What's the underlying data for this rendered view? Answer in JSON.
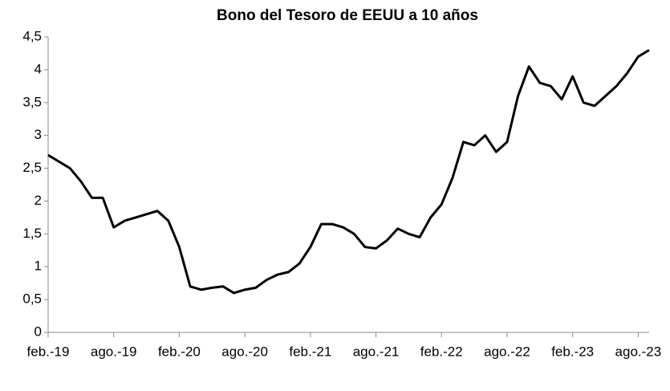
{
  "chart_data": {
    "type": "line",
    "title": "Bono del Tesoro de EEUU a 10 años",
    "x": [
      "2019-02",
      "2019-03",
      "2019-04",
      "2019-05",
      "2019-06",
      "2019-07",
      "2019-08",
      "2019-09",
      "2019-10",
      "2019-11",
      "2019-12",
      "2020-01",
      "2020-02",
      "2020-03",
      "2020-04",
      "2020-05",
      "2020-06",
      "2020-07",
      "2020-08",
      "2020-09",
      "2020-10",
      "2020-11",
      "2020-12",
      "2021-01",
      "2021-02",
      "2021-03",
      "2021-04",
      "2021-05",
      "2021-06",
      "2021-07",
      "2021-08",
      "2021-09",
      "2021-10",
      "2021-11",
      "2021-12",
      "2022-01",
      "2022-02",
      "2022-03",
      "2022-04",
      "2022-05",
      "2022-06",
      "2022-07",
      "2022-08",
      "2022-09",
      "2022-10",
      "2022-11",
      "2022-12",
      "2023-01",
      "2023-02",
      "2023-03",
      "2023-04",
      "2023-05",
      "2023-06",
      "2023-07",
      "2023-08",
      "2023-09"
    ],
    "series": [
      {
        "name": "Bono del Tesoro de EEUU a 10 años",
        "color": "#000000",
        "values": [
          2.7,
          2.6,
          2.5,
          2.3,
          2.05,
          2.05,
          1.6,
          1.7,
          1.75,
          1.8,
          1.85,
          1.7,
          1.3,
          0.7,
          0.65,
          0.68,
          0.7,
          0.6,
          0.65,
          0.68,
          0.8,
          0.88,
          0.92,
          1.05,
          1.3,
          1.65,
          1.65,
          1.6,
          1.5,
          1.3,
          1.28,
          1.4,
          1.58,
          1.5,
          1.45,
          1.75,
          1.95,
          2.35,
          2.9,
          2.85,
          3.0,
          2.75,
          2.9,
          3.6,
          4.05,
          3.8,
          3.75,
          3.55,
          3.9,
          3.5,
          3.45,
          3.6,
          3.75,
          3.95,
          4.2,
          4.3
        ]
      }
    ],
    "xlim": [
      "2019-02",
      "2023-09"
    ],
    "xticks": [
      {
        "value": "2019-02",
        "label": "feb.-19"
      },
      {
        "value": "2019-08",
        "label": "ago.-19"
      },
      {
        "value": "2020-02",
        "label": "feb.-20"
      },
      {
        "value": "2020-08",
        "label": "ago.-20"
      },
      {
        "value": "2021-02",
        "label": "feb.-21"
      },
      {
        "value": "2021-08",
        "label": "ago.-21"
      },
      {
        "value": "2022-02",
        "label": "feb.-22"
      },
      {
        "value": "2022-08",
        "label": "ago.-22"
      },
      {
        "value": "2023-02",
        "label": "feb.-23"
      },
      {
        "value": "2023-08",
        "label": "ago.-23"
      }
    ],
    "ylim": [
      0,
      4.5
    ],
    "yticks": [
      0,
      {
        "value": 0.5,
        "label": "0,5"
      },
      1,
      {
        "value": 1.5,
        "label": "1,5"
      },
      2,
      {
        "value": 2.5,
        "label": "2,5"
      },
      3,
      {
        "value": 3.5,
        "label": "3,5"
      },
      4,
      {
        "value": 4.5,
        "label": "4,5"
      }
    ],
    "grid": false
  }
}
